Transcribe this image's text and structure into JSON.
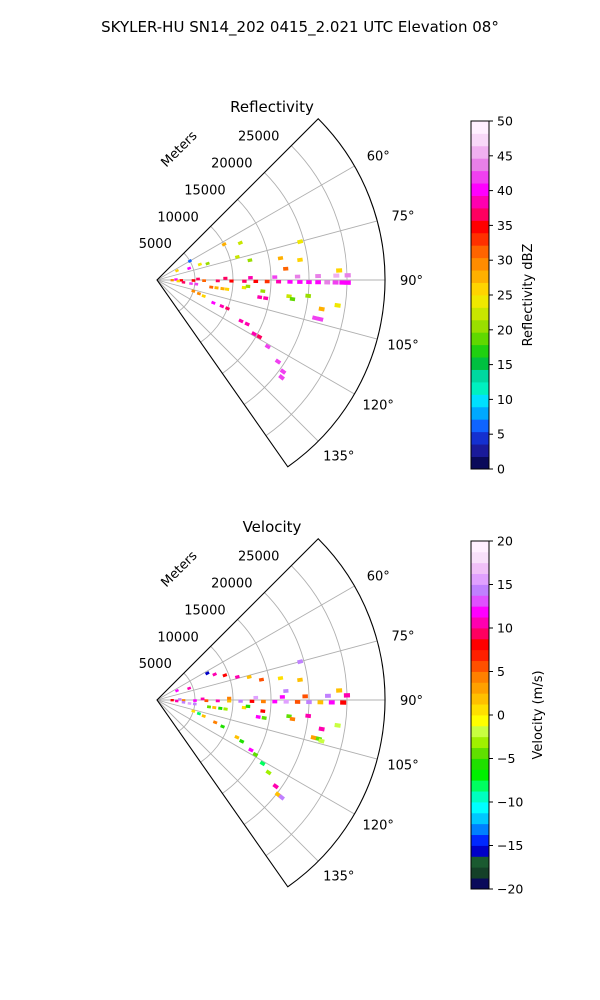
{
  "suptitle": "SKYLER-HU  SN14_202  0415_2.021 UTC Elevation 08°",
  "chart_data": [
    {
      "type": "scatter",
      "projection": "polar-sector",
      "title": "Reflectivity",
      "radial_label": "Meters",
      "radial_ticks": [
        "5000",
        "10000",
        "15000",
        "20000",
        "25000"
      ],
      "radial_values": [
        5000,
        10000,
        15000,
        20000,
        25000
      ],
      "rlim": [
        0,
        30000
      ],
      "theta_range_deg": [
        45,
        145
      ],
      "theta_zero": "north",
      "theta_direction": "clockwise",
      "angle_ticks": [
        "60°",
        "75°",
        "90°",
        "105°",
        "120°",
        "135°"
      ],
      "angle_values": [
        60,
        75,
        90,
        105,
        120,
        135
      ],
      "grid": true,
      "colorbar": {
        "label": "Reflectivity dBZ",
        "vmin": 0,
        "vmax": 50,
        "ticks": [
          "0",
          "5",
          "10",
          "15",
          "20",
          "25",
          "30",
          "35",
          "40",
          "45",
          "50"
        ],
        "tick_values": [
          0,
          5,
          10,
          15,
          20,
          25,
          30,
          35,
          40,
          45,
          50
        ],
        "colors": [
          "#0a0a5a",
          "#1a1a9a",
          "#1430d0",
          "#1064ff",
          "#00a8ff",
          "#00e0ff",
          "#00f0c0",
          "#00d8a0",
          "#00c040",
          "#20d010",
          "#60d800",
          "#9ade00",
          "#c8e600",
          "#f0e800",
          "#ffd400",
          "#ffb000",
          "#ff8c00",
          "#ff6400",
          "#ff3000",
          "#ff0000",
          "#ff0060",
          "#ff00b0",
          "#ff00ff",
          "#f040f0",
          "#e880e8",
          "#f0b0f0",
          "#f8d8f8",
          "#fff0ff"
        ]
      },
      "series": [
        {
          "points": [
            [
              90.8,
              2000,
              30
            ],
            [
              90.8,
              3200,
              34
            ],
            [
              90.8,
              4800,
              34
            ],
            [
              90.8,
              6200,
              32
            ],
            [
              90.8,
              8000,
              36
            ],
            [
              90.8,
              9800,
              34
            ],
            [
              90.8,
              11500,
              36
            ],
            [
              90.8,
              13000,
              34
            ],
            [
              90.8,
              14500,
              33
            ],
            [
              90.8,
              16000,
              38
            ],
            [
              90.8,
              17500,
              40
            ],
            [
              90.8,
              18800,
              40
            ],
            [
              90.8,
              20000,
              41
            ],
            [
              90.8,
              21200,
              40
            ],
            [
              90.8,
              22400,
              43
            ],
            [
              90.8,
              23500,
              42
            ],
            [
              90.8,
              24400,
              40
            ],
            [
              90.8,
              25100,
              40
            ]
          ]
        },
        {
          "points": [
            [
              88.6,
              2500,
              40
            ],
            [
              88.6,
              5400,
              36
            ],
            [
              88.6,
              9000,
              36
            ],
            [
              88.6,
              12300,
              38
            ],
            [
              88.6,
              15500,
              42
            ],
            [
              88.6,
              18500,
              44
            ],
            [
              88.6,
              21200,
              44
            ],
            [
              88.6,
              23600,
              45
            ],
            [
              88.6,
              25100,
              44
            ]
          ]
        },
        {
          "points": [
            [
              96.0,
              4500,
              42
            ],
            [
              96.0,
              5200,
              42
            ],
            [
              97.5,
              7200,
              32
            ],
            [
              97.5,
              7900,
              28
            ],
            [
              97.5,
              8700,
              28
            ],
            [
              97.5,
              9300,
              26
            ],
            [
              99.5,
              13700,
              38
            ],
            [
              99.5,
              14500,
              38
            ],
            [
              103.5,
              21400,
              42
            ],
            [
              103.5,
              22100,
              42
            ]
          ]
        },
        {
          "points": [
            [
              112,
              9200,
              38
            ],
            [
              112,
              10000,
              36
            ],
            [
              116,
              12300,
              38
            ],
            [
              116,
              13200,
              38
            ],
            [
              119,
              14600,
              38
            ],
            [
              119,
              15400,
              36
            ],
            [
              121,
              17000,
              42
            ],
            [
              124,
              19200,
              42
            ],
            [
              126,
              20500,
              42
            ],
            [
              128,
              20800,
              42
            ]
          ]
        },
        {
          "points": [
            [
              107,
              5000,
              30
            ],
            [
              108,
              5800,
              30
            ],
            [
              109,
              6500,
              26
            ],
            [
              112,
              8000,
              40
            ],
            [
              95,
              3500,
              36
            ],
            [
              93,
              2800,
              26
            ],
            [
              70,
              4500,
              40
            ],
            [
              65,
              2900,
              26
            ],
            [
              72,
              7000,
              20
            ],
            [
              74,
              11000,
              22
            ],
            [
              78,
              12500,
              20
            ],
            [
              80,
              16500,
              28
            ],
            [
              82,
              19000,
              26
            ],
            [
              75,
              19500,
              24
            ],
            [
              85,
              17000,
              32
            ],
            [
              87,
              24000,
              26
            ],
            [
              95,
              11500,
              24
            ],
            [
              96,
              14000,
              20
            ],
            [
              97,
              17500,
              22
            ],
            [
              98,
              18000,
              18
            ],
            [
              100,
              22000,
              28
            ],
            [
              98,
              24000,
              24
            ],
            [
              60,
              5000,
              6
            ],
            [
              70,
              6000,
              24
            ],
            [
              66,
              12000,
              22
            ],
            [
              62,
              10000,
              28
            ],
            [
              94,
              12000,
              20
            ],
            [
              96,
              20000,
              20
            ]
          ]
        }
      ]
    },
    {
      "type": "scatter",
      "projection": "polar-sector",
      "title": "Velocity",
      "radial_label": "Meters",
      "radial_ticks": [
        "5000",
        "10000",
        "15000",
        "20000",
        "25000"
      ],
      "radial_values": [
        5000,
        10000,
        15000,
        20000,
        25000
      ],
      "rlim": [
        0,
        30000
      ],
      "theta_range_deg": [
        45,
        145
      ],
      "theta_zero": "north",
      "theta_direction": "clockwise",
      "angle_ticks": [
        "60°",
        "75°",
        "90°",
        "105°",
        "120°",
        "135°"
      ],
      "angle_values": [
        60,
        75,
        90,
        105,
        120,
        135
      ],
      "grid": true,
      "colorbar": {
        "label": "Velocity (m/s)",
        "vmin": -20,
        "vmax": 20,
        "ticks": [
          "−20",
          "−15",
          "−10",
          "−5",
          "0",
          "5",
          "10",
          "15",
          "20"
        ],
        "tick_values": [
          -20,
          -15,
          -10,
          -5,
          0,
          5,
          10,
          15,
          20
        ],
        "colors": [
          "#0a0a5a",
          "#144028",
          "#1a5a30",
          "#0000c8",
          "#0028ff",
          "#0080ff",
          "#00c8ff",
          "#00ffff",
          "#00ffc0",
          "#00ff60",
          "#00f000",
          "#20e000",
          "#60e000",
          "#a0f000",
          "#c8ff40",
          "#ffff00",
          "#ffe000",
          "#ffc000",
          "#ffa000",
          "#ff8000",
          "#ff5000",
          "#ff2000",
          "#ff0000",
          "#ff0060",
          "#ff00b0",
          "#ff00ff",
          "#e050ff",
          "#c080ff",
          "#e0a0ff",
          "#f0c0f8",
          "#f8e0fa",
          "#fff0ff"
        ]
      },
      "series": [
        {
          "points": [
            [
              90.8,
              2000,
              8
            ],
            [
              90.8,
              3500,
              4
            ],
            [
              90.8,
              5000,
              12
            ],
            [
              90.8,
              6500,
              6
            ],
            [
              90.8,
              8000,
              10
            ],
            [
              90.8,
              9500,
              2
            ],
            [
              90.8,
              11000,
              14
            ],
            [
              90.8,
              12500,
              8
            ],
            [
              90.8,
              14000,
              4
            ],
            [
              90.8,
              15500,
              12
            ],
            [
              90.8,
              17000,
              16
            ],
            [
              90.8,
              18500,
              6
            ],
            [
              90.8,
              20000,
              14
            ],
            [
              90.8,
              21500,
              2
            ],
            [
              90.8,
              23000,
              12
            ],
            [
              90.8,
              24500,
              8
            ]
          ]
        },
        {
          "points": [
            [
              88.6,
              3000,
              14
            ],
            [
              88.6,
              6000,
              10
            ],
            [
              88.6,
              9500,
              4
            ],
            [
              88.6,
              13000,
              16
            ],
            [
              88.6,
              16500,
              12
            ],
            [
              88.6,
              19500,
              6
            ],
            [
              88.6,
              22500,
              14
            ],
            [
              88.6,
              25000,
              10
            ]
          ]
        },
        {
          "points": [
            [
              96.0,
              4300,
              16
            ],
            [
              96.0,
              5000,
              14
            ],
            [
              97.5,
              6900,
              -4
            ],
            [
              97.5,
              7600,
              2
            ],
            [
              97.5,
              8400,
              -6
            ],
            [
              97.5,
              9100,
              -3
            ],
            [
              99.5,
              13500,
              12
            ],
            [
              99.5,
              14300,
              -4
            ],
            [
              103.5,
              21200,
              3
            ],
            [
              103.5,
              21900,
              -4
            ],
            [
              104,
              22300,
              -2
            ]
          ]
        },
        {
          "points": [
            [
              111,
              8200,
              4
            ],
            [
              112,
              9300,
              -6
            ],
            [
              115,
              11600,
              2
            ],
            [
              116,
              12400,
              -6
            ],
            [
              118,
              14000,
              12
            ],
            [
              119,
              14800,
              -4
            ],
            [
              121,
              16200,
              -8
            ],
            [
              123,
              17500,
              -3
            ],
            [
              126,
              19300,
              10
            ],
            [
              128,
              20200,
              2
            ],
            [
              128,
              20800,
              14
            ]
          ]
        },
        {
          "points": [
            [
              107,
              5000,
              0
            ],
            [
              108,
              5800,
              -8
            ],
            [
              109,
              6500,
              2
            ],
            [
              93,
              2600,
              10
            ],
            [
              95,
              3500,
              14
            ],
            [
              70,
              4500,
              10
            ],
            [
              65,
              2900,
              12
            ],
            [
              62,
              7500,
              -16
            ],
            [
              66,
              8300,
              10
            ],
            [
              70,
              9500,
              8
            ],
            [
              74,
              11000,
              10
            ],
            [
              76,
              12500,
              2
            ],
            [
              79,
              14000,
              6
            ],
            [
              80,
              16500,
              0
            ],
            [
              82,
              19000,
              2
            ],
            [
              75,
              19500,
              14
            ],
            [
              86,
              17000,
              14
            ],
            [
              87,
              24000,
              2
            ],
            [
              95,
              11500,
              0
            ],
            [
              96,
              14000,
              8
            ],
            [
              97,
              17500,
              -4
            ],
            [
              98,
              18000,
              4
            ],
            [
              100,
              22000,
              10
            ],
            [
              98,
              24000,
              -2
            ],
            [
              94,
              12000,
              -6
            ],
            [
              96,
              20000,
              10
            ]
          ]
        }
      ]
    }
  ]
}
